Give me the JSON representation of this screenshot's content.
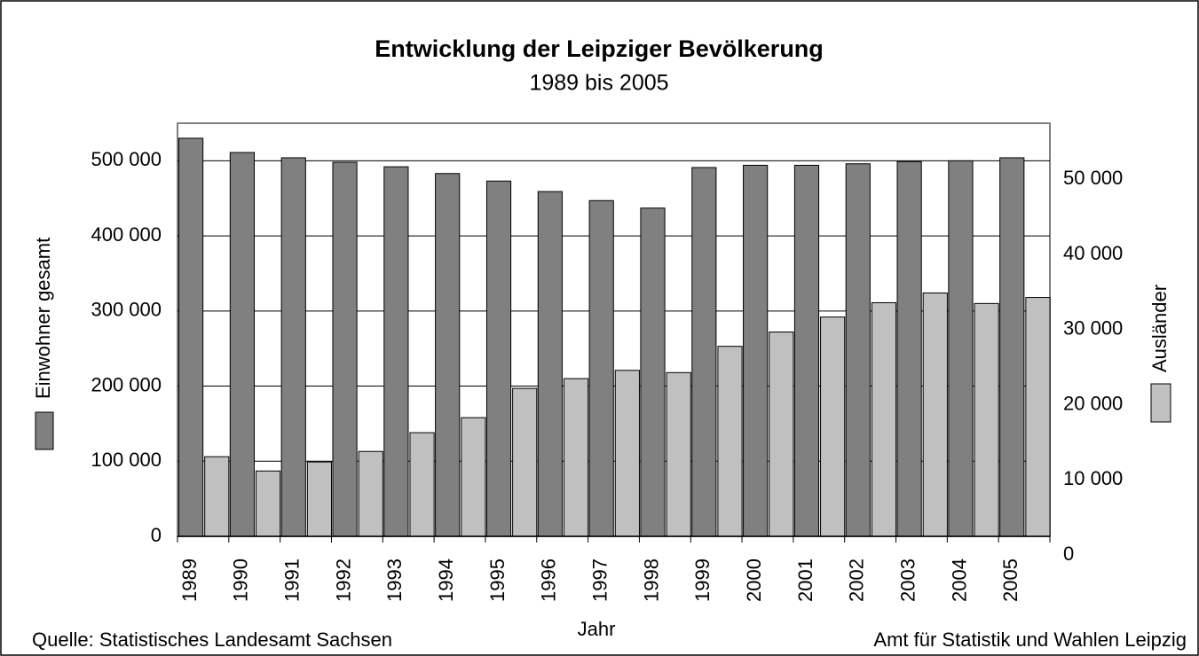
{
  "chart_data": {
    "type": "bar",
    "title": "Entwicklung der Leipziger Bevölkerung",
    "subtitle": "1989 bis 2005",
    "x_label": "Jahr",
    "source": "Quelle: Statistisches Landesamt Sachsen",
    "author": "Amt für Statistik und Wahlen Leipzig",
    "categories": [
      "1989",
      "1990",
      "1991",
      "1992",
      "1993",
      "1994",
      "1995",
      "1996",
      "1997",
      "1998",
      "1999",
      "2000",
      "2001",
      "2002",
      "2003",
      "2004",
      "2005"
    ],
    "series": [
      {
        "name": "Einwohner gesamt",
        "color": "#808080",
        "axis": "y",
        "values": [
          530000,
          511000,
          504000,
          498000,
          492000,
          483000,
          473000,
          459000,
          447000,
          437000,
          491000,
          494000,
          494000,
          496000,
          499000,
          500000,
          504000
        ]
      },
      {
        "name": "Ausländer",
        "color": "#c0c0c0",
        "axis": "y2",
        "values": [
          12600,
          10700,
          11900,
          13300,
          15800,
          17800,
          21700,
          23000,
          24100,
          23800,
          27300,
          29200,
          31200,
          33100,
          34400,
          33000,
          33800
        ]
      }
    ],
    "ylim": [
      0,
      550000
    ],
    "yticks": [
      {
        "value": 0,
        "label": "0"
      },
      {
        "value": 100000,
        "label": "100 000"
      },
      {
        "value": 200000,
        "label": "200 000"
      },
      {
        "value": 300000,
        "label": "300 000"
      },
      {
        "value": 400000,
        "label": "400 000"
      },
      {
        "value": 500000,
        "label": "500 000"
      }
    ],
    "y2lim": [
      2000,
      57000
    ],
    "y2ticks": [
      0,
      {
        "value": 10000,
        "label": "10 000"
      },
      {
        "value": 20000,
        "label": "20 000"
      },
      {
        "value": 30000,
        "label": "30 000"
      },
      {
        "value": 40000,
        "label": "40 000"
      },
      {
        "value": 50000,
        "label": "50 000"
      }
    ],
    "grid": true
  }
}
